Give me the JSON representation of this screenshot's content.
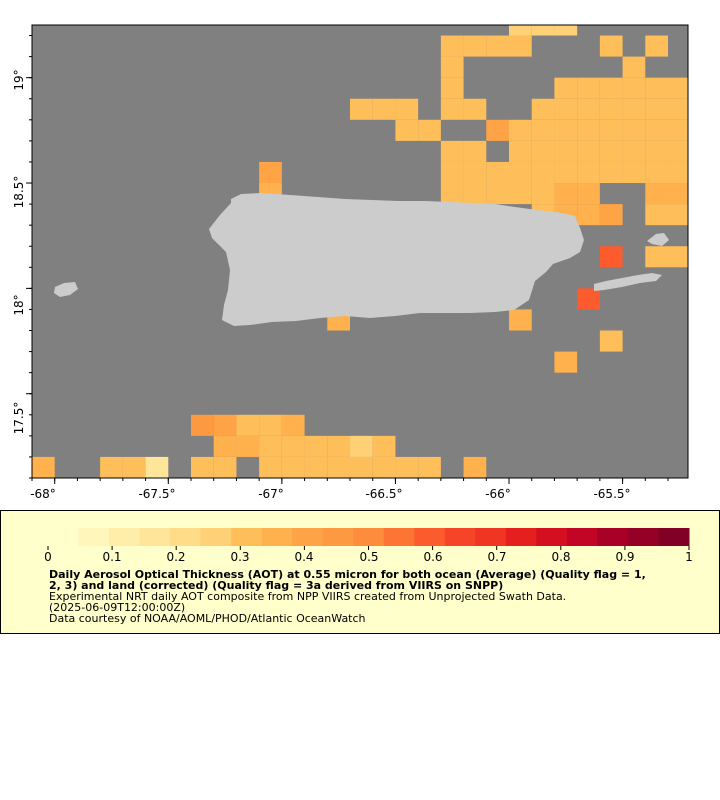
{
  "map": {
    "xaxis_ticks": [
      "-68°",
      "-67.5°",
      "-67°",
      "-66.5°",
      "-66°",
      "-65.5°"
    ],
    "yaxis_ticks": [
      "19°",
      "18.5°",
      "18°",
      "17.5°"
    ],
    "colors": {
      "ocean": "#808080",
      "land": "#cccccc",
      "legend_background": "#ffffcc"
    },
    "cells": [
      {
        "lon": -65.95,
        "lat": 19.25,
        "aot": 0.25
      },
      {
        "lon": -65.85,
        "lat": 19.25,
        "aot": 0.25
      },
      {
        "lon": -65.75,
        "lat": 19.25,
        "aot": 0.25
      },
      {
        "lon": -66.25,
        "lat": 19.15,
        "aot": 0.3
      },
      {
        "lon": -66.15,
        "lat": 19.15,
        "aot": 0.3
      },
      {
        "lon": -66.05,
        "lat": 19.15,
        "aot": 0.3
      },
      {
        "lon": -65.95,
        "lat": 19.15,
        "aot": 0.3
      },
      {
        "lon": -65.55,
        "lat": 19.15,
        "aot": 0.3
      },
      {
        "lon": -65.35,
        "lat": 19.15,
        "aot": 0.3
      },
      {
        "lon": -66.25,
        "lat": 19.05,
        "aot": 0.3
      },
      {
        "lon": -65.45,
        "lat": 19.05,
        "aot": 0.3
      },
      {
        "lon": -66.25,
        "lat": 18.95,
        "aot": 0.3
      },
      {
        "lon": -65.75,
        "lat": 18.95,
        "aot": 0.3
      },
      {
        "lon": -65.65,
        "lat": 18.95,
        "aot": 0.3
      },
      {
        "lon": -65.55,
        "lat": 18.95,
        "aot": 0.3
      },
      {
        "lon": -65.45,
        "lat": 18.95,
        "aot": 0.3
      },
      {
        "lon": -65.35,
        "lat": 18.95,
        "aot": 0.3
      },
      {
        "lon": -65.25,
        "lat": 18.95,
        "aot": 0.3
      },
      {
        "lon": -66.65,
        "lat": 18.85,
        "aot": 0.3
      },
      {
        "lon": -66.55,
        "lat": 18.85,
        "aot": 0.3
      },
      {
        "lon": -66.45,
        "lat": 18.85,
        "aot": 0.3
      },
      {
        "lon": -66.25,
        "lat": 18.85,
        "aot": 0.3
      },
      {
        "lon": -66.15,
        "lat": 18.85,
        "aot": 0.3
      },
      {
        "lon": -65.85,
        "lat": 18.85,
        "aot": 0.3
      },
      {
        "lon": -65.75,
        "lat": 18.85,
        "aot": 0.3
      },
      {
        "lon": -65.65,
        "lat": 18.85,
        "aot": 0.3
      },
      {
        "lon": -65.55,
        "lat": 18.85,
        "aot": 0.3
      },
      {
        "lon": -65.45,
        "lat": 18.85,
        "aot": 0.3
      },
      {
        "lon": -65.35,
        "lat": 18.85,
        "aot": 0.3
      },
      {
        "lon": -65.25,
        "lat": 18.85,
        "aot": 0.3
      },
      {
        "lon": -66.45,
        "lat": 18.75,
        "aot": 0.3
      },
      {
        "lon": -66.35,
        "lat": 18.75,
        "aot": 0.3
      },
      {
        "lon": -66.05,
        "lat": 18.75,
        "aot": 0.4
      },
      {
        "lon": -65.95,
        "lat": 18.75,
        "aot": 0.3
      },
      {
        "lon": -65.85,
        "lat": 18.75,
        "aot": 0.3
      },
      {
        "lon": -65.75,
        "lat": 18.75,
        "aot": 0.3
      },
      {
        "lon": -65.65,
        "lat": 18.75,
        "aot": 0.3
      },
      {
        "lon": -65.55,
        "lat": 18.75,
        "aot": 0.3
      },
      {
        "lon": -65.45,
        "lat": 18.75,
        "aot": 0.3
      },
      {
        "lon": -65.35,
        "lat": 18.75,
        "aot": 0.3
      },
      {
        "lon": -65.25,
        "lat": 18.75,
        "aot": 0.3
      },
      {
        "lon": -65.15,
        "lat": 18.75,
        "aot": 0.3
      },
      {
        "lon": -66.25,
        "lat": 18.65,
        "aot": 0.3
      },
      {
        "lon": -66.15,
        "lat": 18.65,
        "aot": 0.3
      },
      {
        "lon": -65.95,
        "lat": 18.65,
        "aot": 0.3
      },
      {
        "lon": -65.85,
        "lat": 18.65,
        "aot": 0.3
      },
      {
        "lon": -65.75,
        "lat": 18.65,
        "aot": 0.3
      },
      {
        "lon": -65.65,
        "lat": 18.65,
        "aot": 0.3
      },
      {
        "lon": -65.55,
        "lat": 18.65,
        "aot": 0.3
      },
      {
        "lon": -65.45,
        "lat": 18.65,
        "aot": 0.3
      },
      {
        "lon": -65.35,
        "lat": 18.65,
        "aot": 0.3
      },
      {
        "lon": -65.25,
        "lat": 18.65,
        "aot": 0.3
      },
      {
        "lon": -65.15,
        "lat": 18.65,
        "aot": 0.3
      },
      {
        "lon": -67.05,
        "lat": 18.55,
        "aot": 0.4
      },
      {
        "lon": -66.25,
        "lat": 18.55,
        "aot": 0.3
      },
      {
        "lon": -66.15,
        "lat": 18.55,
        "aot": 0.3
      },
      {
        "lon": -66.05,
        "lat": 18.55,
        "aot": 0.3
      },
      {
        "lon": -65.95,
        "lat": 18.55,
        "aot": 0.3
      },
      {
        "lon": -65.85,
        "lat": 18.55,
        "aot": 0.3
      },
      {
        "lon": -65.75,
        "lat": 18.55,
        "aot": 0.3
      },
      {
        "lon": -65.65,
        "lat": 18.55,
        "aot": 0.3
      },
      {
        "lon": -65.55,
        "lat": 18.55,
        "aot": 0.3
      },
      {
        "lon": -65.45,
        "lat": 18.55,
        "aot": 0.3
      },
      {
        "lon": -65.35,
        "lat": 18.55,
        "aot": 0.3
      },
      {
        "lon": -65.25,
        "lat": 18.55,
        "aot": 0.3
      },
      {
        "lon": -65.15,
        "lat": 18.55,
        "aot": 0.3
      },
      {
        "lon": -67.05,
        "lat": 18.45,
        "aot": 0.35
      },
      {
        "lon": -66.25,
        "lat": 18.45,
        "aot": 0.3
      },
      {
        "lon": -66.15,
        "lat": 18.45,
        "aot": 0.3
      },
      {
        "lon": -66.05,
        "lat": 18.45,
        "aot": 0.3
      },
      {
        "lon": -65.95,
        "lat": 18.45,
        "aot": 0.3
      },
      {
        "lon": -65.85,
        "lat": 18.45,
        "aot": 0.3
      },
      {
        "lon": -65.75,
        "lat": 18.45,
        "aot": 0.35
      },
      {
        "lon": -65.65,
        "lat": 18.45,
        "aot": 0.35
      },
      {
        "lon": -65.35,
        "lat": 18.45,
        "aot": 0.35
      },
      {
        "lon": -65.25,
        "lat": 18.45,
        "aot": 0.35
      },
      {
        "lon": -65.15,
        "lat": 18.45,
        "aot": 0.35
      },
      {
        "lon": -65.85,
        "lat": 18.35,
        "aot": 0.3
      },
      {
        "lon": -65.75,
        "lat": 18.35,
        "aot": 0.35
      },
      {
        "lon": -65.65,
        "lat": 18.35,
        "aot": 0.35
      },
      {
        "lon": -65.55,
        "lat": 18.35,
        "aot": 0.4
      },
      {
        "lon": -65.35,
        "lat": 18.35,
        "aot": 0.3
      },
      {
        "lon": -65.25,
        "lat": 18.35,
        "aot": 0.3
      },
      {
        "lon": -65.15,
        "lat": 18.35,
        "aot": 0.3
      },
      {
        "lon": -65.15,
        "lat": 18.25,
        "aot": 0.3
      },
      {
        "lon": -65.55,
        "lat": 18.15,
        "aot": 0.6
      },
      {
        "lon": -65.35,
        "lat": 18.15,
        "aot": 0.3
      },
      {
        "lon": -65.25,
        "lat": 18.15,
        "aot": 0.3
      },
      {
        "lon": -65.15,
        "lat": 18.15,
        "aot": 0.3
      },
      {
        "lon": -65.15,
        "lat": 18.05,
        "aot": 0.3
      },
      {
        "lon": -65.65,
        "lat": 17.95,
        "aot": 0.6
      },
      {
        "lon": -65.15,
        "lat": 17.95,
        "aot": 0.3
      },
      {
        "lon": -66.75,
        "lat": 17.85,
        "aot": 0.35
      },
      {
        "lon": -65.95,
        "lat": 17.85,
        "aot": 0.35
      },
      {
        "lon": -65.15,
        "lat": 17.85,
        "aot": 0.35
      },
      {
        "lon": -65.55,
        "lat": 17.75,
        "aot": 0.3
      },
      {
        "lon": -65.75,
        "lat": 17.65,
        "aot": 0.35
      },
      {
        "lon": -67.35,
        "lat": 17.35,
        "aot": 0.45
      },
      {
        "lon": -67.25,
        "lat": 17.35,
        "aot": 0.4
      },
      {
        "lon": -67.15,
        "lat": 17.35,
        "aot": 0.3
      },
      {
        "lon": -67.05,
        "lat": 17.35,
        "aot": 0.3
      },
      {
        "lon": -66.95,
        "lat": 17.35,
        "aot": 0.35
      },
      {
        "lon": -67.25,
        "lat": 17.25,
        "aot": 0.35
      },
      {
        "lon": -67.15,
        "lat": 17.25,
        "aot": 0.35
      },
      {
        "lon": -67.05,
        "lat": 17.25,
        "aot": 0.3
      },
      {
        "lon": -66.95,
        "lat": 17.25,
        "aot": 0.3
      },
      {
        "lon": -66.85,
        "lat": 17.25,
        "aot": 0.3
      },
      {
        "lon": -66.75,
        "lat": 17.25,
        "aot": 0.3
      },
      {
        "lon": -66.65,
        "lat": 17.25,
        "aot": 0.25
      },
      {
        "lon": -66.55,
        "lat": 17.25,
        "aot": 0.3
      },
      {
        "lon": -68.05,
        "lat": 17.15,
        "aot": 0.35
      },
      {
        "lon": -67.75,
        "lat": 17.15,
        "aot": 0.3
      },
      {
        "lon": -67.65,
        "lat": 17.15,
        "aot": 0.3
      },
      {
        "lon": -67.55,
        "lat": 17.15,
        "aot": 0.15
      },
      {
        "lon": -67.35,
        "lat": 17.15,
        "aot": 0.3
      },
      {
        "lon": -67.25,
        "lat": 17.15,
        "aot": 0.3
      },
      {
        "lon": -67.05,
        "lat": 17.15,
        "aot": 0.3
      },
      {
        "lon": -66.95,
        "lat": 17.15,
        "aot": 0.3
      },
      {
        "lon": -66.85,
        "lat": 17.15,
        "aot": 0.3
      },
      {
        "lon": -66.75,
        "lat": 17.15,
        "aot": 0.3
      },
      {
        "lon": -66.65,
        "lat": 17.15,
        "aot": 0.3
      },
      {
        "lon": -66.55,
        "lat": 17.15,
        "aot": 0.3
      },
      {
        "lon": -66.45,
        "lat": 17.15,
        "aot": 0.3
      },
      {
        "lon": -66.35,
        "lat": 17.15,
        "aot": 0.3
      },
      {
        "lon": -66.15,
        "lat": 17.15,
        "aot": 0.35
      }
    ]
  },
  "legend": {
    "ticks": [
      "0",
      "0.1",
      "0.2",
      "0.3",
      "0.4",
      "0.5",
      "0.6",
      "0.7",
      "0.8",
      "0.9",
      "1"
    ],
    "title": "Daily Aerosol Optical Thickness (AOT) at 0.55 micron for both ocean (Average) (Quality flag = 1,\n2, 3) and land (corrected) (Quality flag = 3a derived from VIIRS on SNPP)",
    "subtitle": "Experimental NRT daily AOT composite from NPP VIIRS created from Unprojected Swath Data.",
    "date": "(2025-06-09T12:00:00Z)",
    "credit": "Data courtesy of NOAA/AOML/PHOD/Atlantic OceanWatch",
    "colors": [
      "#ffffcc",
      "#fff6bb",
      "#ffedaa",
      "#ffe599",
      "#ffdc87",
      "#fed176",
      "#febf5a",
      "#feb14c",
      "#fea446",
      "#fd9941",
      "#fd8d3c",
      "#fd7535",
      "#fc5b2e",
      "#f64429",
      "#f03523",
      "#e51f1d",
      "#d41020",
      "#c20425",
      "#a80026",
      "#940026",
      "#800026"
    ]
  }
}
